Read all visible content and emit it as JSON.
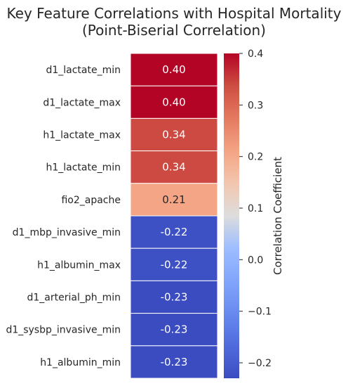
{
  "chart_data": {
    "type": "heatmap",
    "title_lines": [
      "Key Feature Correlations with Hospital Mortality",
      "(Point-Biserial Correlation)"
    ],
    "rows": [
      "d1_lactate_min",
      "d1_lactate_max",
      "h1_lactate_max",
      "h1_lactate_min",
      "fio2_apache",
      "d1_mbp_invasive_min",
      "h1_albumin_max",
      "d1_arterial_ph_min",
      "d1_sysbp_invasive_min",
      "h1_albumin_min"
    ],
    "values": [
      0.4,
      0.4,
      0.34,
      0.34,
      0.21,
      -0.22,
      -0.22,
      -0.23,
      -0.23,
      -0.23
    ],
    "value_labels": [
      "0.40",
      "0.40",
      "0.34",
      "0.34",
      "0.21",
      "-0.22",
      "-0.22",
      "-0.23",
      "-0.23",
      "-0.23"
    ],
    "colormap": "coolwarm",
    "vmin": -0.23,
    "vmax": 0.4,
    "colorbar": {
      "label": "Correlation Coefficient",
      "ticks": [
        0.4,
        0.3,
        0.2,
        0.1,
        0.0,
        -0.1,
        -0.2
      ],
      "tick_labels": [
        "0.4",
        "0.3",
        "0.2",
        "0.1",
        "0.0",
        "−0.1",
        "−0.2"
      ]
    }
  }
}
